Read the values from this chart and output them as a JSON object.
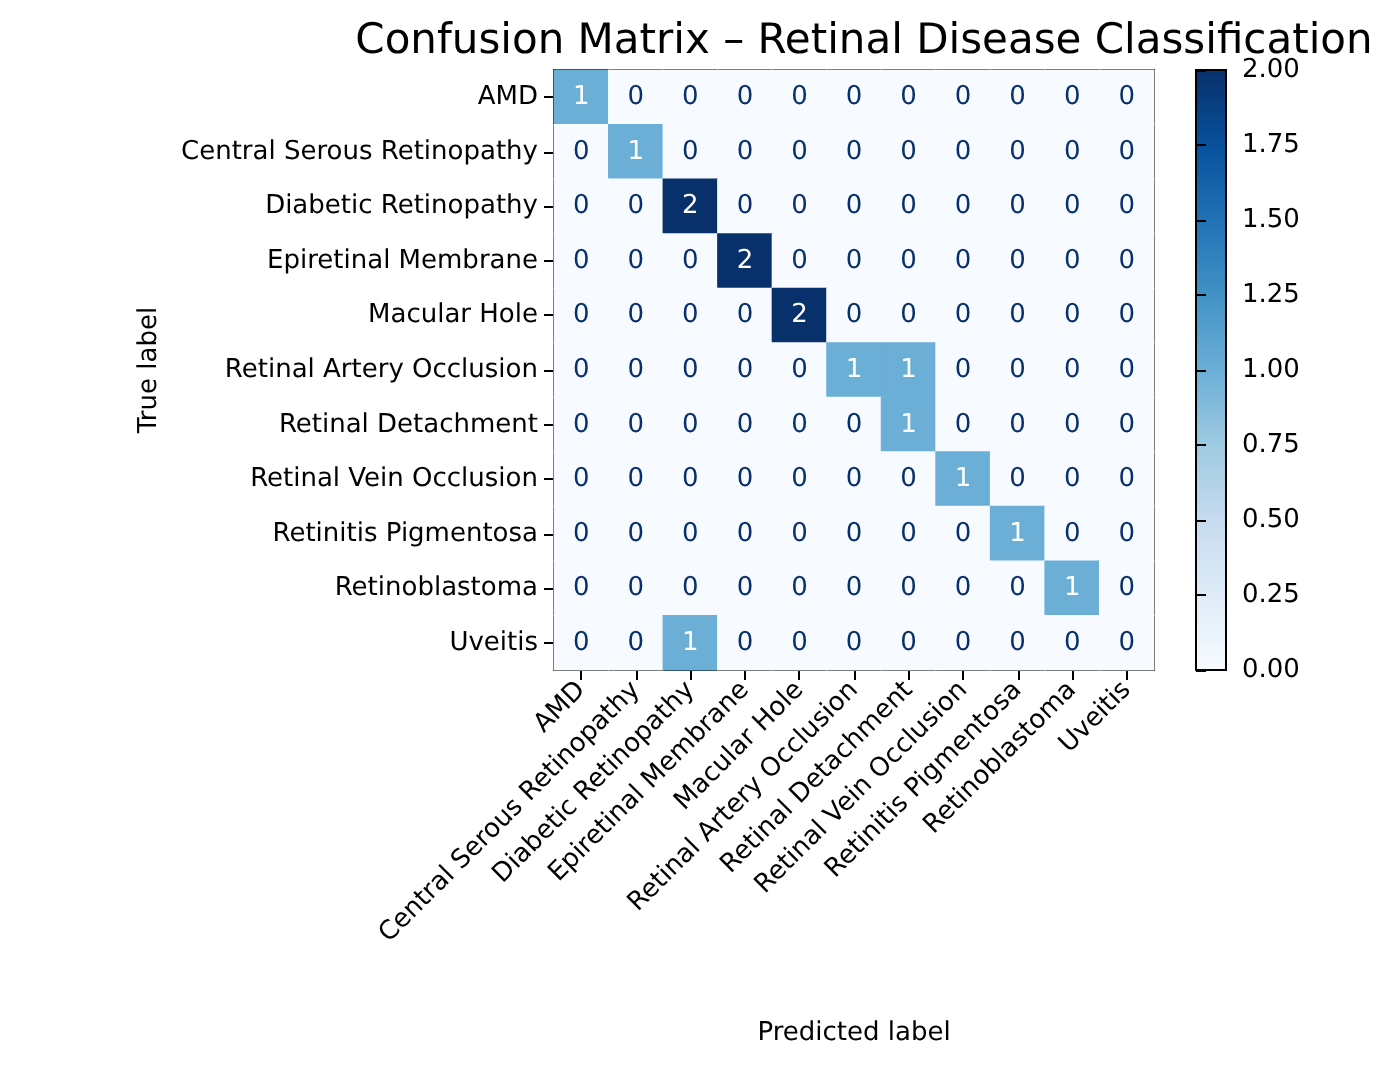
{
  "chart_data": {
    "type": "heatmap",
    "title": "Confusion Matrix – Retinal Disease Classification",
    "xlabel": "Predicted label",
    "ylabel": "True label",
    "categories": [
      "AMD",
      "Central Serous Retinopathy",
      "Diabetic Retinopathy",
      "Epiretinal Membrane",
      "Macular Hole",
      "Retinal Artery Occlusion",
      "Retinal Detachment",
      "Retinal Vein Occlusion",
      "Retinitis Pigmentosa",
      "Retinoblastoma",
      "Uveitis"
    ],
    "y_categories": [
      "AMD",
      "Central Serous Retinopathy",
      "Diabetic Retinopathy",
      "Epiretinal Membrane",
      "Macular Hole",
      "Retinal Artery Occlusion",
      "Retinal Detachment",
      "Retinal Vein Occlusion",
      "Retinitis Pigmentosa",
      "Retinoblastoma",
      "Uveitis"
    ],
    "cells": [
      [
        1,
        0,
        0,
        0,
        0,
        0,
        0,
        0,
        0,
        0,
        0
      ],
      [
        0,
        1,
        0,
        0,
        0,
        0,
        0,
        0,
        0,
        0,
        0
      ],
      [
        0,
        0,
        2,
        0,
        0,
        0,
        0,
        0,
        0,
        0,
        0
      ],
      [
        0,
        0,
        0,
        2,
        0,
        0,
        0,
        0,
        0,
        0,
        0
      ],
      [
        0,
        0,
        0,
        0,
        2,
        0,
        0,
        0,
        0,
        0,
        0
      ],
      [
        0,
        0,
        0,
        0,
        0,
        1,
        1,
        0,
        0,
        0,
        0
      ],
      [
        0,
        0,
        0,
        0,
        0,
        0,
        1,
        0,
        0,
        0,
        0
      ],
      [
        0,
        0,
        0,
        0,
        0,
        0,
        0,
        1,
        0,
        0,
        0
      ],
      [
        0,
        0,
        0,
        0,
        0,
        0,
        0,
        0,
        1,
        0,
        0
      ],
      [
        0,
        0,
        0,
        0,
        0,
        0,
        0,
        0,
        0,
        1,
        0
      ],
      [
        0,
        0,
        1,
        0,
        0,
        0,
        0,
        0,
        0,
        0,
        0
      ]
    ],
    "clim": [
      0,
      2
    ],
    "cticks": [
      {
        "value": 0,
        "label": "0.00"
      },
      {
        "value": 0.25,
        "label": "0.25"
      },
      {
        "value": 0.5,
        "label": "0.50"
      },
      {
        "value": 0.75,
        "label": "0.75"
      },
      {
        "value": 1,
        "label": "1.00"
      },
      {
        "value": 1.25,
        "label": "1.25"
      },
      {
        "value": 1.5,
        "label": "1.50"
      },
      {
        "value": 1.75,
        "label": "1.75"
      },
      {
        "value": 2,
        "label": "2.00"
      }
    ],
    "data_labels": true
  }
}
